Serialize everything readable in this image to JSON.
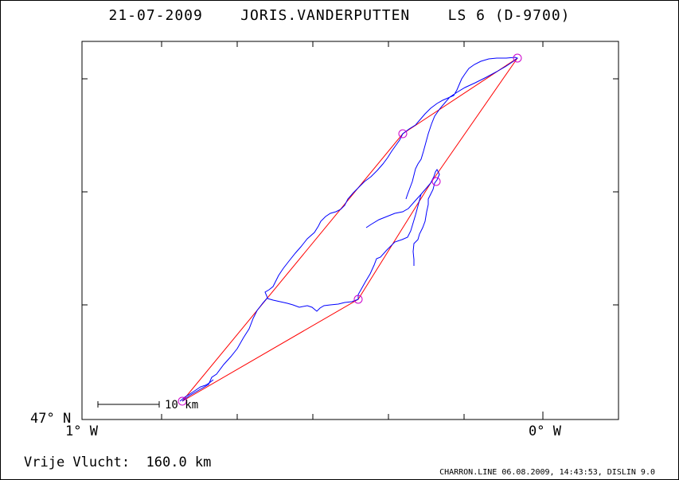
{
  "title": "21-07-2009    JORIS.VANDERPUTTEN    LS 6 (D-9700)",
  "axes": {
    "lat_label": "47° N",
    "lon_west_label": "1° W",
    "lon_zero_label": "0° W"
  },
  "scale_bar": {
    "label": "10 km"
  },
  "free_flight": "Vrije Vlucht:  160.0 km",
  "footer": "CHARRON.LINE 06.08.2009, 14:43:53, DISLIN 9.0",
  "colors": {
    "track": "#0000ff",
    "task": "#ff0000",
    "turnpoint": "#cc00cc",
    "frame": "#000000"
  }
}
